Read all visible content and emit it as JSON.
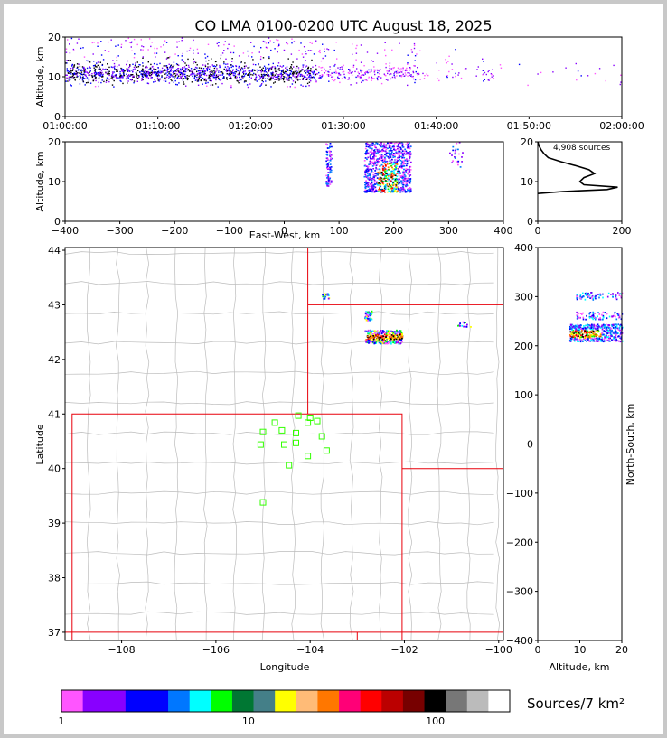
{
  "chart_data": {
    "type": "scatter",
    "title": "CO LMA 0100-0200 UTC August 18, 2025",
    "colors": {
      "border_red": "#e8000b",
      "county_gray": "#bcbcbc",
      "station_green": "#33ff00",
      "frame_gray": "#c8c8c8"
    },
    "time_altitude": {
      "ylabel": "Altitude, km",
      "xlim": [
        "01:00:00",
        "02:00:00"
      ],
      "ylim": [
        0,
        20
      ],
      "xticks": [
        "01:00:00",
        "01:10:00",
        "01:20:00",
        "01:30:00",
        "01:40:00",
        "01:50:00",
        "02:00:00"
      ],
      "yticks": [
        "0",
        "10",
        "20"
      ],
      "dense_bands": [
        {
          "t0": 0,
          "t1": 27,
          "z0": 7.5,
          "z1": 20,
          "density": 1.0
        },
        {
          "t0": 27,
          "t1": 38,
          "z0": 8,
          "z1": 19,
          "density": 0.45
        },
        {
          "t0": 38,
          "t1": 46,
          "z0": 9,
          "z1": 18,
          "density": 0.12
        },
        {
          "t0": 46,
          "t1": 60,
          "z0": 8,
          "z1": 19,
          "density": 0.03
        }
      ]
    },
    "ew_altitude": {
      "xlabel": "East-West, km",
      "ylabel": "Altitude, km",
      "xlim": [
        -400,
        400
      ],
      "ylim": [
        0,
        20
      ],
      "xticks": [
        "−400",
        "−300",
        "−200",
        "−100",
        "0",
        "100",
        "200",
        "300",
        "400"
      ],
      "yticks": [
        "0",
        "10",
        "20"
      ],
      "clusters": [
        {
          "x0": 75,
          "x1": 85,
          "z0": 9,
          "z1": 20,
          "n": 90
        },
        {
          "x0": 145,
          "x1": 230,
          "z0": 7.5,
          "z1": 20,
          "n": 900
        },
        {
          "x0": 300,
          "x1": 325,
          "z0": 13,
          "z1": 20,
          "n": 25
        }
      ]
    },
    "histogram": {
      "annotation": "4,908 sources",
      "xlim": [
        0,
        200
      ],
      "ylim": [
        0,
        20
      ],
      "xticks": [
        "0",
        "200"
      ],
      "yticks": [
        "0",
        "10",
        "20"
      ],
      "profile": [
        {
          "z": 7,
          "n": 0
        },
        {
          "z": 7.5,
          "n": 60
        },
        {
          "z": 8,
          "n": 165
        },
        {
          "z": 8.6,
          "n": 190
        },
        {
          "z": 9.2,
          "n": 110
        },
        {
          "z": 10,
          "n": 100
        },
        {
          "z": 11,
          "n": 110
        },
        {
          "z": 12,
          "n": 135
        },
        {
          "z": 13,
          "n": 122
        },
        {
          "z": 14,
          "n": 90
        },
        {
          "z": 15,
          "n": 55
        },
        {
          "z": 16,
          "n": 25
        },
        {
          "z": 17,
          "n": 15
        },
        {
          "z": 18,
          "n": 8
        },
        {
          "z": 19,
          "n": 3
        },
        {
          "z": 20,
          "n": 0
        }
      ]
    },
    "plan_view": {
      "xlabel": "Longitude",
      "ylabel": "Latitude",
      "xlim": [
        -109.2,
        -99.9
      ],
      "ylim": [
        36.85,
        44.05
      ],
      "xticks": [
        "−108",
        "−106",
        "−104",
        "−102",
        "−100"
      ],
      "yticks": [
        "37",
        "38",
        "39",
        "40",
        "41",
        "42",
        "43",
        "44"
      ],
      "stations": [
        {
          "lon": -104.25,
          "lat": 40.97
        },
        {
          "lon": -104.0,
          "lat": 40.93
        },
        {
          "lon": -103.85,
          "lat": 40.87
        },
        {
          "lon": -104.05,
          "lat": 40.84
        },
        {
          "lon": -104.75,
          "lat": 40.84
        },
        {
          "lon": -104.6,
          "lat": 40.7
        },
        {
          "lon": -105.0,
          "lat": 40.67
        },
        {
          "lon": -104.3,
          "lat": 40.65
        },
        {
          "lon": -103.75,
          "lat": 40.59
        },
        {
          "lon": -104.3,
          "lat": 40.47
        },
        {
          "lon": -104.55,
          "lat": 40.44
        },
        {
          "lon": -105.05,
          "lat": 40.44
        },
        {
          "lon": -103.65,
          "lat": 40.33
        },
        {
          "lon": -104.05,
          "lat": 40.23
        },
        {
          "lon": -104.45,
          "lat": 40.06
        },
        {
          "lon": -105.0,
          "lat": 39.38
        }
      ],
      "clusters": [
        {
          "lon0": -102.85,
          "lon1": -102.05,
          "lat0": 42.3,
          "lat1": 42.55,
          "n": 320
        },
        {
          "lon0": -102.85,
          "lon1": -102.7,
          "lat0": 42.72,
          "lat1": 42.9,
          "n": 45
        },
        {
          "lon0": -103.75,
          "lon1": -103.6,
          "lat0": 43.12,
          "lat1": 43.22,
          "n": 25
        },
        {
          "lon0": -100.9,
          "lon1": -100.6,
          "lat0": 42.6,
          "lat1": 42.7,
          "n": 15
        }
      ]
    },
    "ns_altitude": {
      "xlabel": "Altitude, km",
      "ylabel": "North-South, km",
      "xlim": [
        0,
        20
      ],
      "ylim": [
        -400,
        400
      ],
      "xticks": [
        "0",
        "10",
        "20"
      ],
      "yticks": [
        "−400",
        "−300",
        "−200",
        "−100",
        "0",
        "100",
        "200",
        "300",
        "400"
      ],
      "clusters": [
        {
          "z0": 7.5,
          "z1": 20,
          "y0": 210,
          "y1": 245,
          "n": 500
        },
        {
          "z0": 9,
          "z1": 20,
          "y0": 255,
          "y1": 270,
          "n": 80
        },
        {
          "z0": 9,
          "z1": 20,
          "y0": 295,
          "y1": 310,
          "n": 70
        }
      ]
    },
    "colorbar": {
      "label": "Sources/7 km²",
      "ticks": [
        "1",
        "10",
        "100"
      ],
      "colors": [
        "#ff55ff",
        "#8800ff",
        "#8800ff",
        "#0000ff",
        "#0000ff",
        "#0077ff",
        "#00ffff",
        "#00ff00",
        "#007733",
        "#447f88",
        "#ffff00",
        "#ffbb77",
        "#ff7700",
        "#ff0077",
        "#ff0000",
        "#bb0000",
        "#770000",
        "#000000",
        "#777777",
        "#bbbbbb",
        "#ffffff"
      ]
    }
  }
}
